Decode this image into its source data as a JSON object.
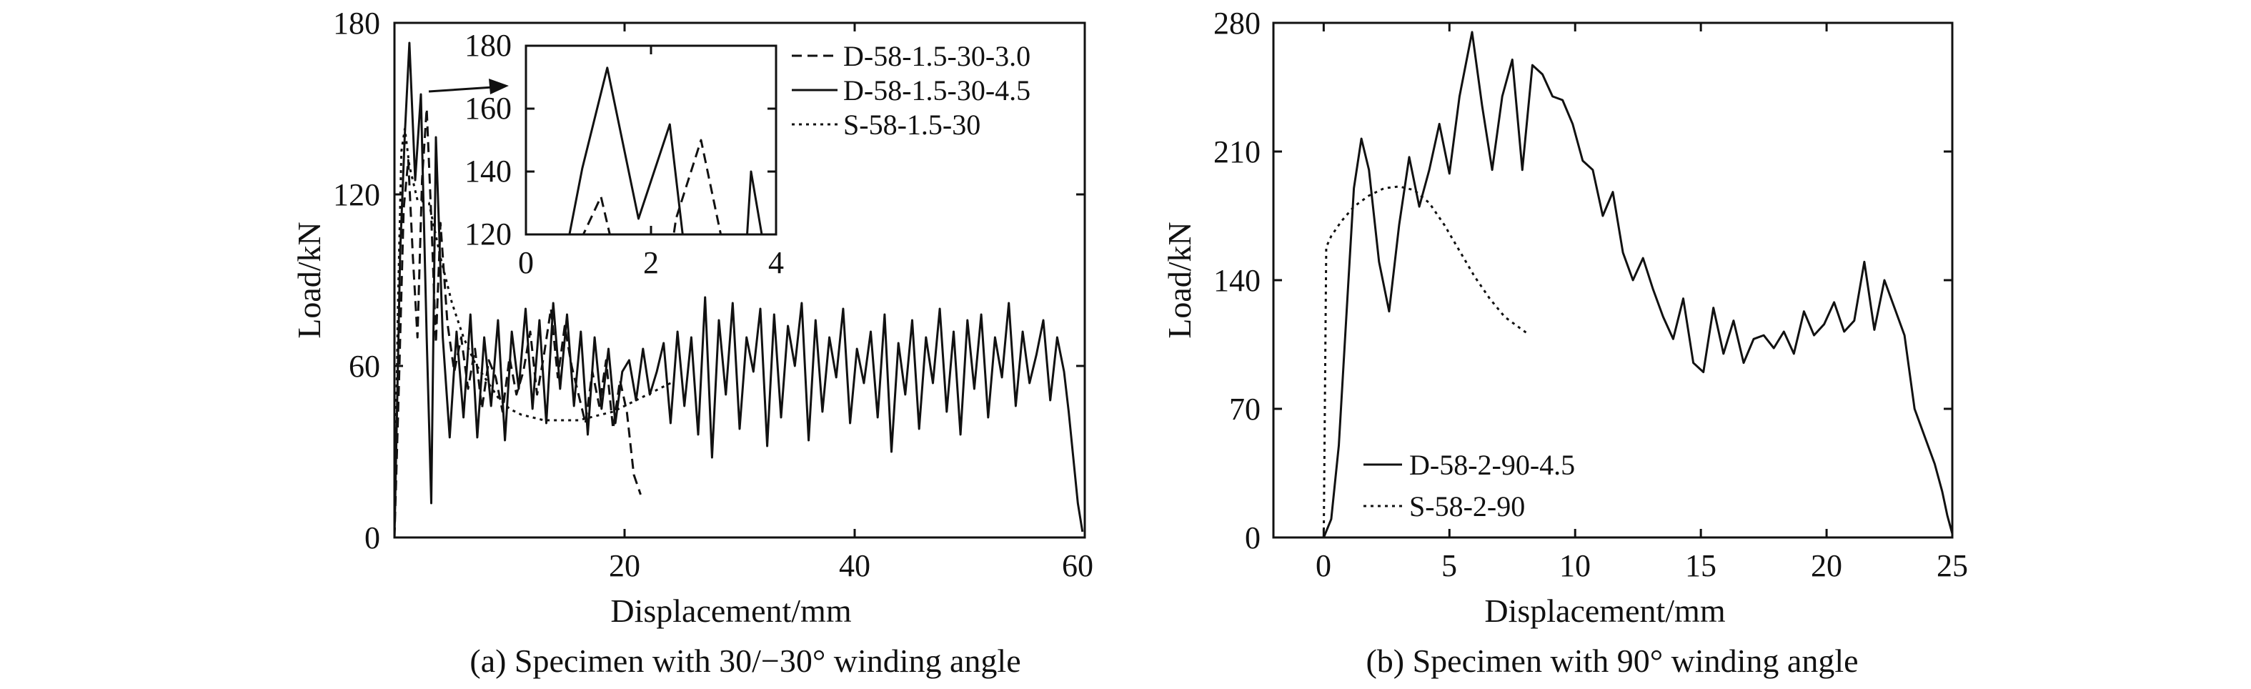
{
  "chart_data": [
    {
      "type": "line",
      "caption": "(a) Specimen with 30/−30° winding angle",
      "xlabel": "Displacement/mm",
      "ylabel": "Load/kN",
      "xlim": [
        0,
        60
      ],
      "ylim": [
        0,
        180
      ],
      "xticks": [
        20,
        40,
        60
      ],
      "yticks": [
        0,
        60,
        120,
        180
      ],
      "legend_position": "top-right",
      "series": [
        {
          "name": "D-58-1.5-30-3.0",
          "style": "dashed",
          "x": [
            0,
            0.4,
            0.8,
            1.2,
            1.6,
            2.0,
            2.4,
            2.8,
            3.2,
            3.6,
            4.0,
            4.6,
            5.2,
            5.8,
            6.4,
            7.0,
            7.6,
            8.2,
            8.8,
            9.4,
            10.0,
            10.6,
            11.2,
            11.8,
            12.4,
            13.0,
            13.6,
            14.2,
            14.8,
            15.4,
            16.0,
            16.6,
            17.2,
            17.8,
            18.4,
            19.0,
            19.6,
            20.2,
            20.8,
            21.4
          ],
          "y": [
            0,
            55,
            115,
            132,
            98,
            70,
            125,
            150,
            112,
            68,
            110,
            75,
            58,
            70,
            52,
            66,
            45,
            62,
            56,
            44,
            63,
            50,
            58,
            72,
            50,
            64,
            80,
            56,
            74,
            60,
            50,
            40,
            58,
            46,
            62,
            38,
            55,
            44,
            22,
            15
          ]
        },
        {
          "name": "D-58-1.5-30-4.5",
          "style": "solid",
          "x": [
            0,
            0.5,
            0.9,
            1.3,
            1.8,
            2.3,
            2.8,
            3.2,
            3.6,
            4.2,
            4.8,
            5.4,
            6.0,
            6.6,
            7.2,
            7.8,
            8.4,
            9.0,
            9.6,
            10.2,
            10.8,
            11.4,
            12.0,
            12.6,
            13.2,
            13.8,
            14.4,
            15.0,
            15.6,
            16.2,
            16.8,
            17.4,
            18.0,
            18.6,
            19.2,
            19.8,
            20.4,
            21.0,
            21.6,
            22.2,
            22.8,
            23.4,
            24.0,
            24.6,
            25.2,
            25.8,
            26.4,
            27.0,
            27.6,
            28.2,
            28.8,
            29.4,
            30.0,
            30.6,
            31.2,
            31.8,
            32.4,
            33.0,
            33.6,
            34.2,
            34.8,
            35.4,
            36.0,
            36.6,
            37.2,
            37.8,
            38.4,
            39.0,
            39.6,
            40.2,
            40.8,
            41.4,
            42.0,
            42.6,
            43.2,
            43.8,
            44.4,
            45.0,
            45.6,
            46.2,
            46.8,
            47.4,
            48.0,
            48.6,
            49.2,
            49.8,
            50.4,
            51.0,
            51.6,
            52.2,
            52.8,
            53.4,
            54.0,
            54.6,
            55.2,
            55.8,
            56.4,
            57.0,
            57.6,
            58.2,
            58.6,
            59.0,
            59.4,
            59.8
          ],
          "y": [
            0,
            100,
            141,
            173,
            125,
            155,
            70,
            12,
            140,
            70,
            35,
            72,
            42,
            78,
            35,
            70,
            46,
            76,
            34,
            72,
            52,
            80,
            45,
            76,
            40,
            82,
            52,
            78,
            46,
            72,
            36,
            70,
            45,
            66,
            40,
            58,
            62,
            48,
            66,
            50,
            58,
            68,
            40,
            72,
            46,
            70,
            36,
            84,
            28,
            76,
            50,
            82,
            38,
            70,
            58,
            80,
            32,
            78,
            42,
            74,
            60,
            82,
            34,
            76,
            44,
            70,
            56,
            80,
            40,
            66,
            54,
            72,
            42,
            78,
            30,
            68,
            50,
            76,
            38,
            70,
            54,
            80,
            44,
            72,
            36,
            76,
            52,
            78,
            42,
            70,
            56,
            82,
            46,
            72,
            54,
            64,
            76,
            48,
            70,
            58,
            44,
            28,
            12,
            2
          ]
        },
        {
          "name": "S-58-1.5-30",
          "style": "dotted",
          "x": [
            0,
            0.3,
            0.6,
            0.9,
            1.3,
            2,
            3,
            4,
            5,
            6,
            7,
            8,
            9,
            10,
            11,
            12,
            13,
            14,
            15,
            16,
            17,
            18,
            19,
            20,
            21,
            22,
            23,
            24
          ],
          "y": [
            0,
            80,
            135,
            143,
            130,
            118,
            117,
            98,
            82,
            70,
            61,
            55,
            49,
            45,
            43,
            42,
            41,
            41,
            41,
            41,
            42,
            43,
            44,
            46,
            48,
            50,
            52,
            54
          ]
        }
      ],
      "inset": {
        "xlim": [
          0,
          4
        ],
        "ylim": [
          120,
          180
        ],
        "xticks": [
          0,
          2,
          4
        ],
        "yticks": [
          120,
          140,
          160,
          180
        ]
      }
    },
    {
      "type": "line",
      "caption": "(b) Specimen with 90° winding angle",
      "xlabel": "Displacement/mm",
      "ylabel": "Load/kN",
      "xlim": [
        -2,
        25
      ],
      "ylim": [
        0,
        280
      ],
      "xticks": [
        0,
        5,
        10,
        15,
        20,
        25
      ],
      "yticks": [
        0,
        70,
        140,
        210,
        280
      ],
      "legend_position": "bottom-left",
      "series": [
        {
          "name": "D-58-2-90-4.5",
          "style": "solid",
          "x": [
            0,
            0.3,
            0.6,
            0.9,
            1.2,
            1.5,
            1.8,
            2.2,
            2.6,
            3.0,
            3.4,
            3.8,
            4.2,
            4.6,
            5.0,
            5.4,
            5.9,
            6.3,
            6.7,
            7.1,
            7.5,
            7.9,
            8.3,
            8.7,
            9.1,
            9.5,
            9.9,
            10.3,
            10.7,
            11.1,
            11.5,
            11.9,
            12.3,
            12.7,
            13.1,
            13.5,
            13.9,
            14.3,
            14.7,
            15.1,
            15.5,
            15.9,
            16.3,
            16.7,
            17.1,
            17.5,
            17.9,
            18.3,
            18.7,
            19.1,
            19.5,
            19.9,
            20.3,
            20.7,
            21.1,
            21.5,
            21.9,
            22.3,
            22.7,
            23.1,
            23.5,
            23.9,
            24.3,
            24.6,
            24.8,
            25.0
          ],
          "y": [
            0,
            10,
            50,
            120,
            190,
            217,
            200,
            150,
            123,
            170,
            207,
            180,
            200,
            225,
            198,
            240,
            275,
            235,
            200,
            240,
            260,
            200,
            257,
            252,
            240,
            238,
            225,
            205,
            200,
            175,
            188,
            155,
            140,
            152,
            135,
            120,
            108,
            130,
            95,
            90,
            125,
            100,
            118,
            95,
            108,
            110,
            103,
            112,
            100,
            123,
            110,
            116,
            128,
            112,
            118,
            150,
            113,
            140,
            125,
            110,
            70,
            55,
            40,
            25,
            12,
            2
          ]
        },
        {
          "name": "S-58-2-90",
          "style": "dotted",
          "x": [
            0,
            0.1,
            0.3,
            0.7,
            1.2,
            1.8,
            2.4,
            3.0,
            3.6,
            4.2,
            4.8,
            5.4,
            6.0,
            6.6,
            7.2,
            7.8,
            8.1
          ],
          "y": [
            0,
            158,
            164,
            172,
            180,
            186,
            190,
            191,
            189,
            182,
            170,
            156,
            142,
            130,
            120,
            114,
            111
          ]
        }
      ]
    }
  ]
}
